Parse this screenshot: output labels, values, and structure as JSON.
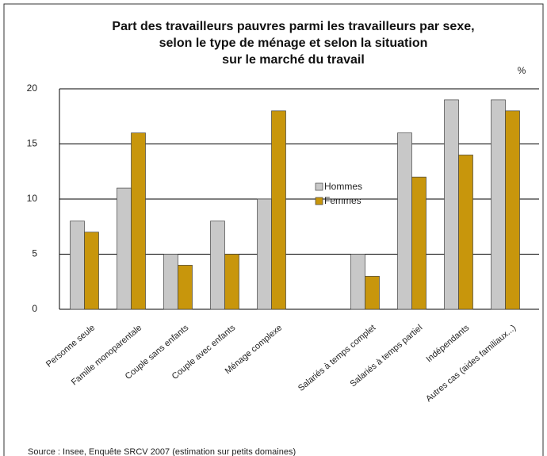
{
  "chart_data": {
    "type": "bar",
    "title": [
      "Part des travailleurs pauvres parmi les travailleurs par sexe,",
      "selon le type de ménage et selon la situation",
      "sur le marché du travail"
    ],
    "unit": "%",
    "categories": [
      "Personne seule",
      "Famille monoparentale",
      "Couple sans enfants",
      "Couple avec enfants",
      "Ménage complexe",
      null,
      "Salariés à temps complet",
      "Salariés à temps partiel",
      "Indépendants",
      "Autres cas (aides familiaux...)"
    ],
    "series": [
      {
        "name": "Hommes",
        "color": "#c8c8c8",
        "values": [
          8,
          11,
          5,
          8,
          10,
          null,
          5,
          16,
          19,
          19
        ]
      },
      {
        "name": "Femmes",
        "color": "#c8960c",
        "values": [
          7,
          16,
          4,
          5,
          18,
          null,
          3,
          12,
          14,
          18
        ]
      }
    ],
    "ylim": [
      0,
      20
    ],
    "yticks": [
      0,
      5,
      10,
      15,
      20
    ],
    "grid": true,
    "source": "Source : Insee, Enquête SRCV 2007 (estimation sur petits domaines)"
  }
}
